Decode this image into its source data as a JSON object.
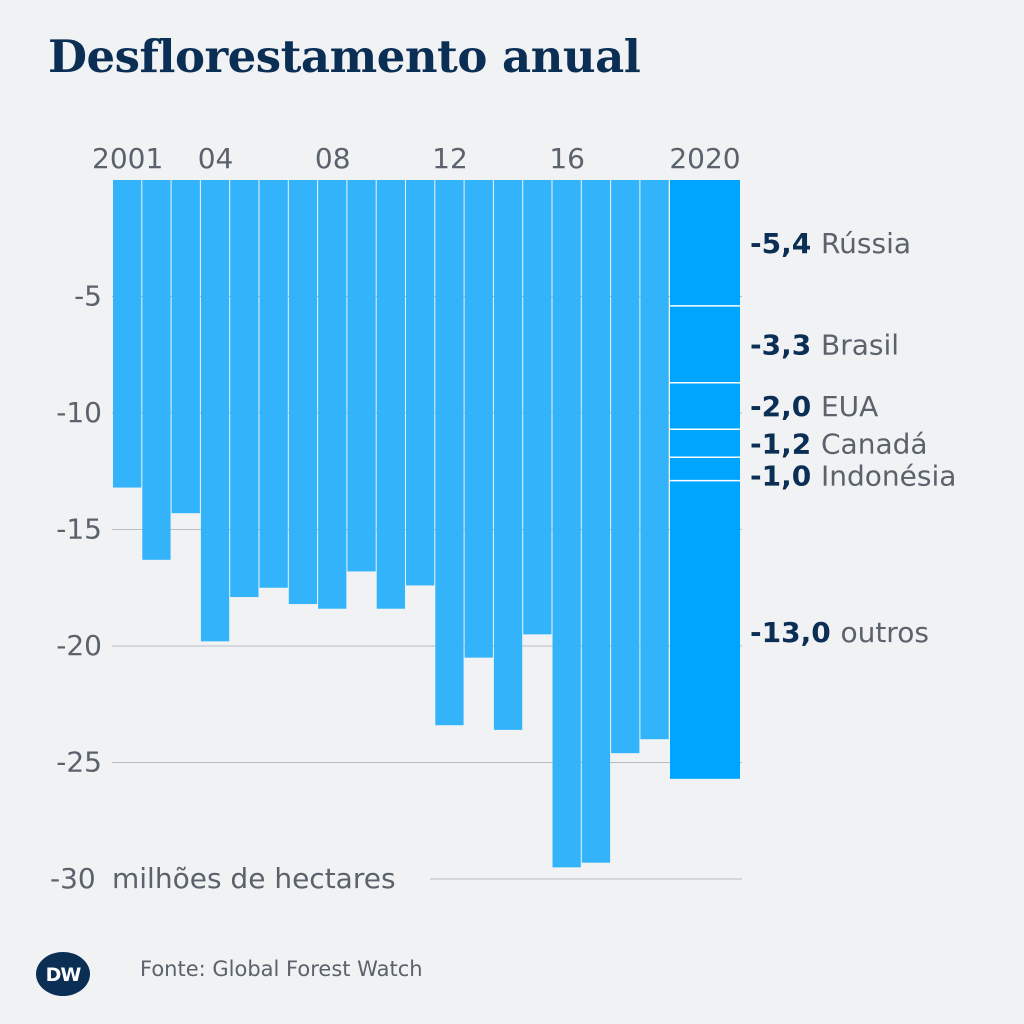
{
  "title": "Desflorestamento anual",
  "source": "Fonte: Global Forest Watch",
  "logo_text": "DW",
  "colors": {
    "bar": "#33b4fa",
    "bar_highlight": "#00a5ff",
    "gridline": "#b8bcc2",
    "axis_text": "#5a626c",
    "value_text": "#0b2e55"
  },
  "chart_data": {
    "type": "bar",
    "years": [
      2001,
      2002,
      2003,
      2004,
      2005,
      2006,
      2007,
      2008,
      2009,
      2010,
      2011,
      2012,
      2013,
      2014,
      2015,
      2016,
      2017,
      2018,
      2019,
      2020
    ],
    "values": [
      -13.2,
      -16.3,
      -14.3,
      -19.8,
      -17.9,
      -17.5,
      -18.2,
      -18.4,
      -16.8,
      -18.4,
      -17.4,
      -23.4,
      -20.5,
      -23.6,
      -19.5,
      -29.5,
      -29.3,
      -24.6,
      -24.0,
      -25.7
    ],
    "x_tick_labels": [
      {
        "year": 2001,
        "label": "2001"
      },
      {
        "year": 2004,
        "label": "04"
      },
      {
        "year": 2008,
        "label": "08"
      },
      {
        "year": 2012,
        "label": "12"
      },
      {
        "year": 2016,
        "label": "16"
      },
      {
        "year": 2020,
        "label": "2020"
      }
    ],
    "y_ticks": [
      {
        "value": -5,
        "label": "-5"
      },
      {
        "value": -10,
        "label": "-10"
      },
      {
        "value": -15,
        "label": "-15"
      },
      {
        "value": -20,
        "label": "-20"
      },
      {
        "value": -25,
        "label": "-25"
      },
      {
        "value": -30,
        "label": "-30"
      }
    ],
    "ylabel": "milhões de hectares",
    "ylim": [
      -30,
      0
    ],
    "grid": true,
    "breakdown_2020": [
      {
        "value": -5.4,
        "value_label": "-5,4",
        "name": "Rússia"
      },
      {
        "value": -3.3,
        "value_label": "-3,3",
        "name": "Brasil"
      },
      {
        "value": -2.0,
        "value_label": "-2,0",
        "name": "EUA"
      },
      {
        "value": -1.2,
        "value_label": "-1,2",
        "name": "Canadá"
      },
      {
        "value": -1.0,
        "value_label": "-1,0",
        "name": "Indonésia"
      },
      {
        "value": -13.0,
        "value_label": "-13,0",
        "name": "outros"
      }
    ]
  }
}
